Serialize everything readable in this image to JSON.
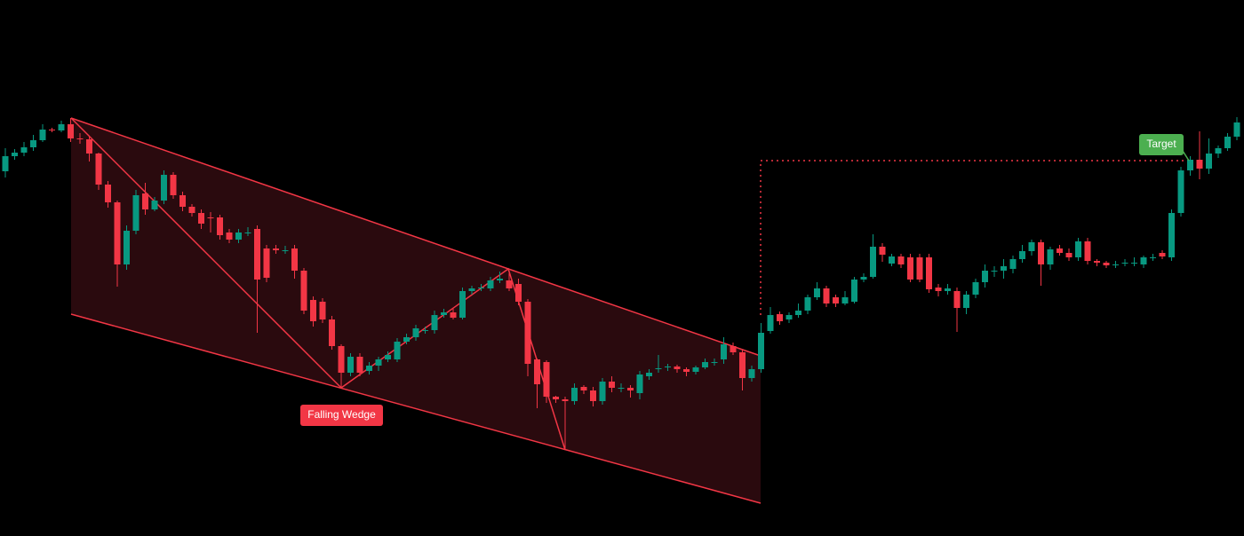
{
  "chart_data": {
    "type": "candlestick",
    "ylim": [
      0,
      604
    ],
    "up_color": "#089981",
    "down_color": "#f23645",
    "annotations": [
      "Falling Wedge",
      "Target"
    ],
    "open": [
      411,
      428,
      432,
      438,
      446,
      458,
      457,
      464,
      448,
      447,
      431,
      396,
      376,
      306,
      344,
      386,
      368,
      378,
      407,
      384,
      371,
      364,
      359,
      359,
      342,
      334,
      342,
      346,
      324,
      324,
      322,
      324,
      299,
      266,
      264,
      244,
      214,
      184,
      202,
      186,
      192,
      199,
      199,
      219,
      224,
      232,
      232,
      249,
      252,
      246,
      276,
      280,
      279,
      288,
      288,
      284,
      264,
      199,
      196,
      157,
      154,
      152,
      168,
      164,
      152,
      174,
      167,
      167,
      161,
      180,
      189,
      191,
      191,
      188,
      185,
      190,
      196,
      199,
      214,
      207,
      178,
      188,
      231,
      250,
      244,
      249,
      254,
      269,
      279,
      269,
      262,
      264,
      289,
      292,
      326,
      307,
      315,
      314,
      314,
      314,
      280,
      276,
      276,
      257,
      272,
      286,
      299,
      299,
      301,
      312,
      321,
      331,
      306,
      324,
      319,
      314,
      332,
      310,
      308,
      306,
      308,
      308,
      306,
      314,
      319,
      314,
      364,
      412,
      424,
      414,
      431,
      437,
      450
    ],
    "high": [
      437,
      436,
      444,
      452,
      464,
      460,
      468,
      471,
      454,
      450,
      432,
      400,
      378,
      350,
      390,
      398,
      382,
      412,
      410,
      388,
      374,
      368,
      365,
      362,
      346,
      346,
      348,
      350,
      328,
      328,
      327,
      328,
      302,
      270,
      268,
      248,
      216,
      206,
      206,
      196,
      202,
      208,
      223,
      228,
      238,
      236,
      254,
      256,
      256,
      280,
      282,
      284,
      292,
      298,
      296,
      290,
      267,
      200,
      198,
      158,
      157,
      172,
      170,
      168,
      178,
      180,
      172,
      170,
      186,
      188,
      204,
      194,
      193,
      190,
      192,
      200,
      200,
      224,
      218,
      210,
      192,
      240,
      258,
      253,
      252,
      262,
      272,
      286,
      282,
      272,
      276,
      292,
      296,
      340,
      330,
      318,
      318,
      318,
      318,
      318,
      284,
      284,
      280,
      276,
      290,
      306,
      304,
      312,
      316,
      328,
      334,
      334,
      326,
      328,
      324,
      336,
      336,
      312,
      310,
      310,
      312,
      314,
      316,
      318,
      322,
      368,
      416,
      428,
      456,
      448,
      440,
      454,
      472
    ],
    "low": [
      404,
      424,
      428,
      434,
      444,
      455,
      455,
      444,
      442,
      422,
      390,
      370,
      281,
      300,
      340,
      362,
      366,
      374,
      380,
      366,
      360,
      346,
      342,
      334,
      330,
      330,
      338,
      229,
      286,
      318,
      318,
      290,
      250,
      236,
      240,
      210,
      167,
      180,
      180,
      182,
      186,
      196,
      196,
      216,
      220,
      228,
      228,
      246,
      244,
      244,
      272,
      276,
      276,
      285,
      276,
      260,
      180,
      144,
      150,
      150,
      97,
      148,
      160,
      146,
      148,
      162,
      162,
      156,
      154,
      176,
      184,
      186,
      184,
      180,
      182,
      188,
      192,
      194,
      204,
      164,
      174,
      184,
      228,
      238,
      240,
      246,
      250,
      266,
      258,
      258,
      260,
      262,
      286,
      290,
      309,
      304,
      302,
      286,
      286,
      274,
      270,
      272,
      230,
      250,
      268,
      280,
      292,
      290,
      296,
      308,
      316,
      282,
      300,
      316,
      310,
      310,
      306,
      304,
      302,
      302,
      304,
      304,
      302,
      310,
      312,
      310,
      360,
      406,
      402,
      408,
      426,
      434,
      446
    ],
    "close": [
      428,
      432,
      438,
      446,
      458,
      457,
      464,
      448,
      447,
      431,
      396,
      376,
      306,
      344,
      384,
      368,
      378,
      407,
      384,
      371,
      364,
      352,
      358,
      339,
      334,
      342,
      342,
      289,
      291,
      322,
      322,
      299,
      254,
      242,
      244,
      214,
      184,
      202,
      184,
      192,
      199,
      204,
      219,
      224,
      234,
      232,
      249,
      252,
      246,
      276,
      279,
      280,
      288,
      290,
      279,
      264,
      194,
      171,
      157,
      154,
      152,
      167,
      164,
      152,
      174,
      167,
      167,
      164,
      182,
      184,
      189,
      191,
      188,
      185,
      190,
      196,
      196,
      216,
      207,
      178,
      188,
      229,
      249,
      242,
      249,
      254,
      269,
      279,
      262,
      262,
      269,
      289,
      292,
      326,
      317,
      315,
      306,
      289,
      289,
      278,
      276,
      279,
      257,
      272,
      286,
      299,
      299,
      304,
      312,
      321,
      331,
      306,
      323,
      319,
      314,
      332,
      310,
      308,
      305,
      306,
      308,
      308,
      314,
      314,
      315,
      364,
      412,
      424,
      414,
      431,
      437,
      450,
      466
    ]
  }
}
